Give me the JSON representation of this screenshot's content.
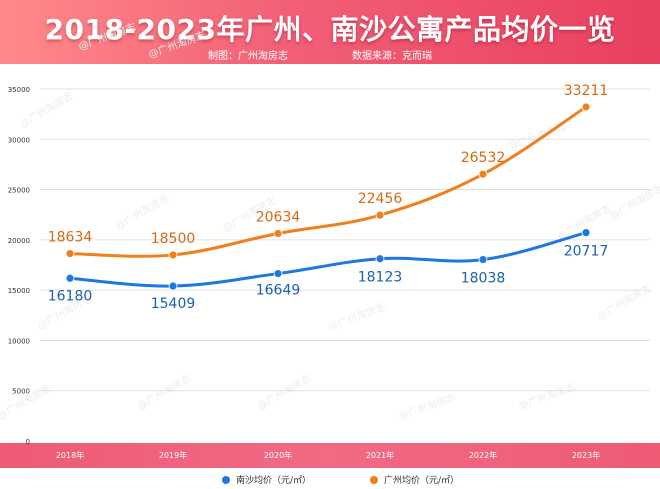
{
  "header": {
    "title": "2018-2023年广州、南沙公寓产品均价一览",
    "credit_maker": "制图：广州淘房志",
    "credit_source": "数据来源：克而瑞"
  },
  "watermark": "@广州淘房志",
  "colors": {
    "nansha": "#1f77e0",
    "guangzhou": "#f07f1c",
    "label_nansha": "#1a5fb0",
    "label_guangzhou": "#d66a12",
    "grid": "#d9d9d9",
    "header_start": "#ff8a8a",
    "header_end": "#e8405f"
  },
  "chart_data": {
    "type": "line",
    "title": "2018-2023年广州、南沙公寓产品均价一览",
    "xlabel": "",
    "ylabel": "",
    "categories": [
      "2018年",
      "2019年",
      "2020年",
      "2021年",
      "2022年",
      "2023年"
    ],
    "series": [
      {
        "name": "南沙均价（元/㎡）",
        "values": [
          16180,
          15409,
          16649,
          18123,
          18038,
          20717
        ]
      },
      {
        "name": "广州均价（元/㎡）",
        "values": [
          18634,
          18500,
          20634,
          22456,
          26532,
          33211
        ]
      }
    ],
    "ylim": [
      0,
      35000
    ],
    "yticks": [
      0,
      5000,
      10000,
      15000,
      20000,
      25000,
      30000,
      35000
    ],
    "grid": true,
    "legend_position": "bottom"
  }
}
